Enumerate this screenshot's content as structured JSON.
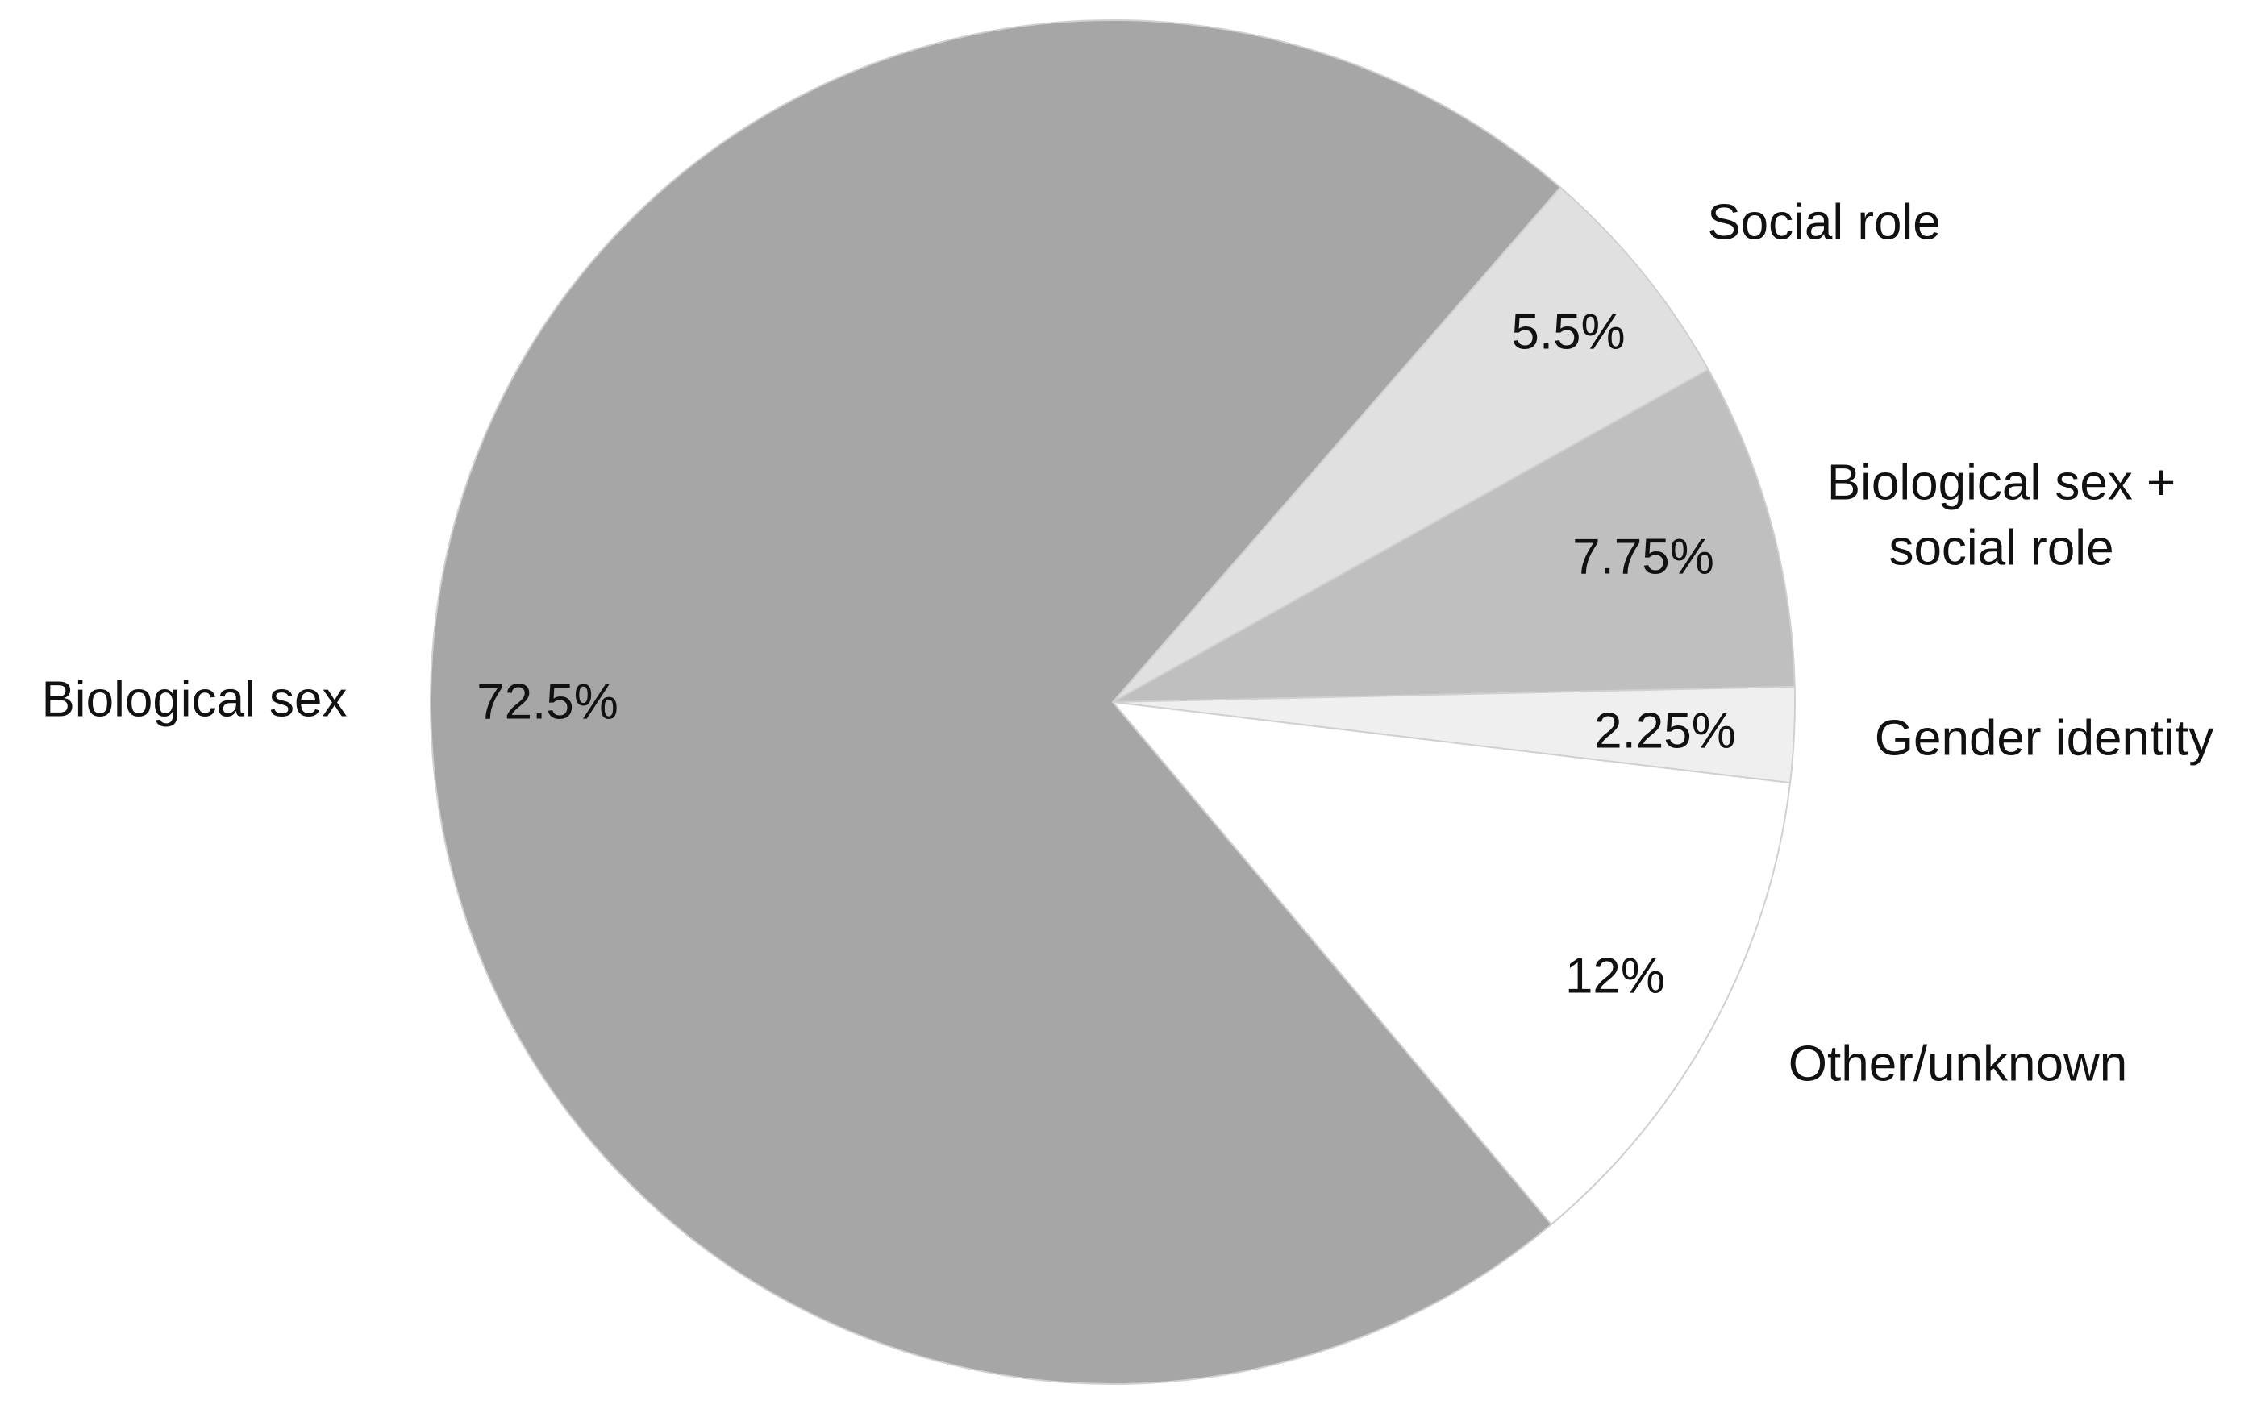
{
  "chart_data": {
    "type": "pie",
    "categories": [
      "Social role",
      "Biological sex + social role",
      "Gender identity",
      "Other/unknown",
      "Biological sex"
    ],
    "values": [
      5.5,
      7.75,
      2.25,
      12,
      72.5
    ],
    "value_labels": [
      "5.5%",
      "7.75%",
      "2.25%",
      "12%",
      "72.5%"
    ],
    "colors": [
      "#e0e0e0",
      "#bfbfbf",
      "#efefef",
      "#ffffff",
      "#a6a6a6"
    ]
  }
}
